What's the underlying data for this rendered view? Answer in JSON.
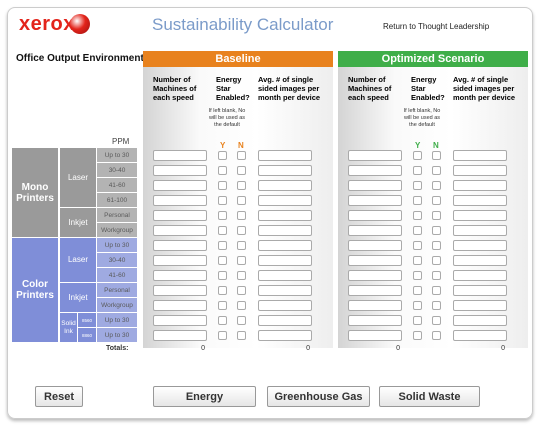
{
  "header": {
    "logo": "xerox",
    "title": "Sustainability Calculator",
    "link": "Return to Thought Leadership"
  },
  "section_title": "Office Output Environment",
  "scenarios": [
    {
      "name": "Baseline",
      "color": "#e8821e"
    },
    {
      "name": "Optimized Scenario",
      "color": "#3fae49"
    }
  ],
  "columns": {
    "machines": "Number of Machines of each speed",
    "energy_star": "Energy Star Enabled?",
    "images": "Avg. # of single sided images per month per device",
    "note": "If left blank, No will be used as the default",
    "yes": "Y",
    "no": "N"
  },
  "ppm_header": "PPM",
  "groups": [
    {
      "name": "Mono Printers",
      "color": "#9a9a9a",
      "subgroups": [
        {
          "name": "Laser",
          "rows": [
            "Up to 30",
            "30-40",
            "41-60",
            "61-100"
          ]
        },
        {
          "name": "Inkjet",
          "rows": [
            "Personal",
            "Workgroup"
          ]
        }
      ]
    },
    {
      "name": "Color Printers",
      "color": "#7f8ed8",
      "subgroups": [
        {
          "name": "Laser",
          "rows": [
            "Up to 30",
            "30-40",
            "41-60"
          ]
        },
        {
          "name": "Inkjet",
          "rows": [
            "Personal",
            "Workgroup"
          ]
        },
        {
          "name": "Solid Ink",
          "models": [
            "8560",
            "8860"
          ],
          "rows": [
            "Up to 30",
            "Up to 30"
          ]
        }
      ]
    }
  ],
  "totals": {
    "label": "Totals:",
    "values": [
      0,
      0,
      0,
      0
    ]
  },
  "buttons": [
    "Reset",
    "Energy",
    "Greenhouse Gas",
    "Solid Waste"
  ]
}
